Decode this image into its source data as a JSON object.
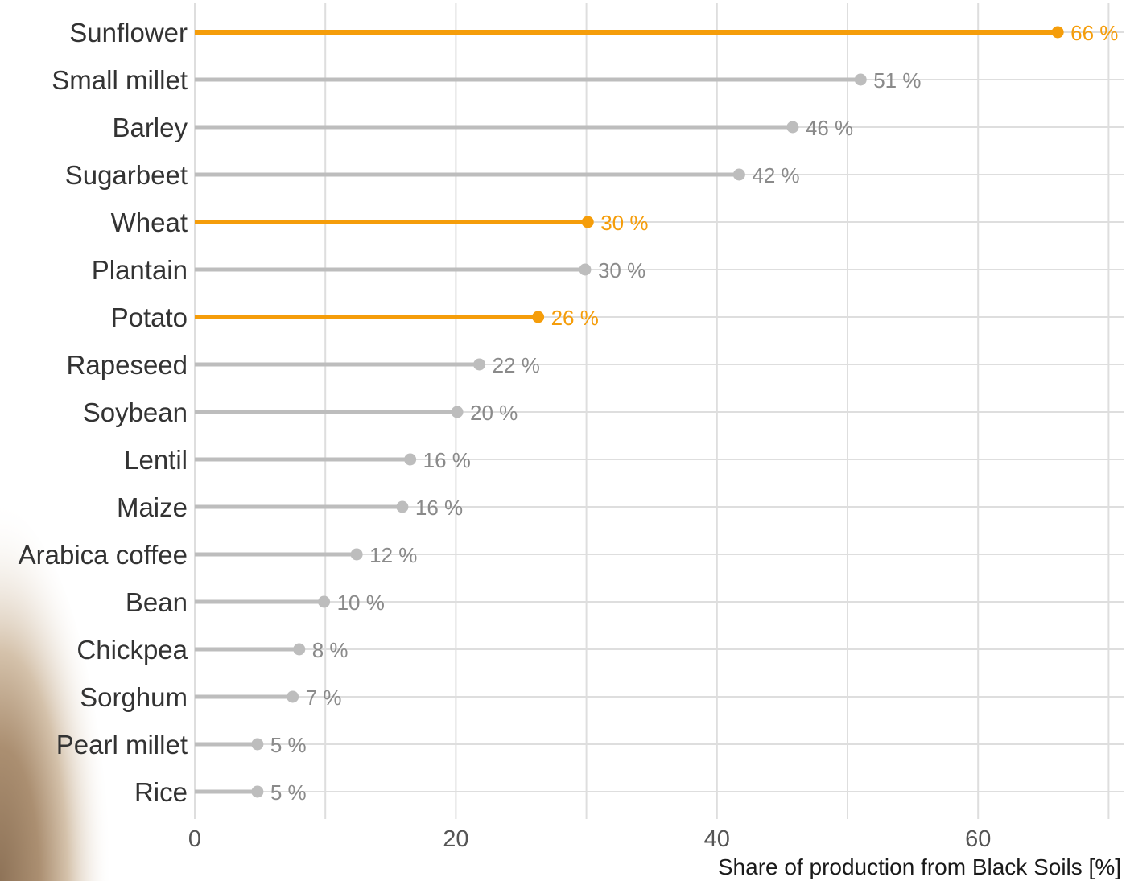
{
  "chart_data": {
    "type": "bar",
    "style": "lollipop",
    "orientation": "horizontal",
    "categories": [
      "Sunflower",
      "Small millet",
      "Barley",
      "Sugarbeet",
      "Wheat",
      "Plantain",
      "Potato",
      "Rapeseed",
      "Soybean",
      "Lentil",
      "Maize",
      "Arabica coffee",
      "Bean",
      "Chickpea",
      "Sorghum",
      "Pearl millet",
      "Rice"
    ],
    "values": [
      66.1,
      51.0,
      45.8,
      41.7,
      30.1,
      29.9,
      26.3,
      21.8,
      20.1,
      16.5,
      15.9,
      12.4,
      9.9,
      8.0,
      7.5,
      4.8,
      4.8
    ],
    "value_labels": [
      "66 %",
      "51 %",
      "46 %",
      "42 %",
      "30 %",
      "30 %",
      "26 %",
      "22 %",
      "20 %",
      "16 %",
      "16 %",
      "12 %",
      "10 %",
      "8 %",
      "7 %",
      "5 %",
      "5 %"
    ],
    "highlighted": [
      "Sunflower",
      "Wheat",
      "Potato"
    ],
    "xlabel": "Share of production from Black Soils [%]",
    "ylabel": "",
    "title": "",
    "xlim": [
      0,
      70
    ],
    "xticks": [
      0,
      20,
      40,
      60
    ],
    "grid": true,
    "legend": "none",
    "colors": {
      "highlight": "#f59d0a",
      "default": "#bdbdbd",
      "grid": "#dedede"
    }
  }
}
